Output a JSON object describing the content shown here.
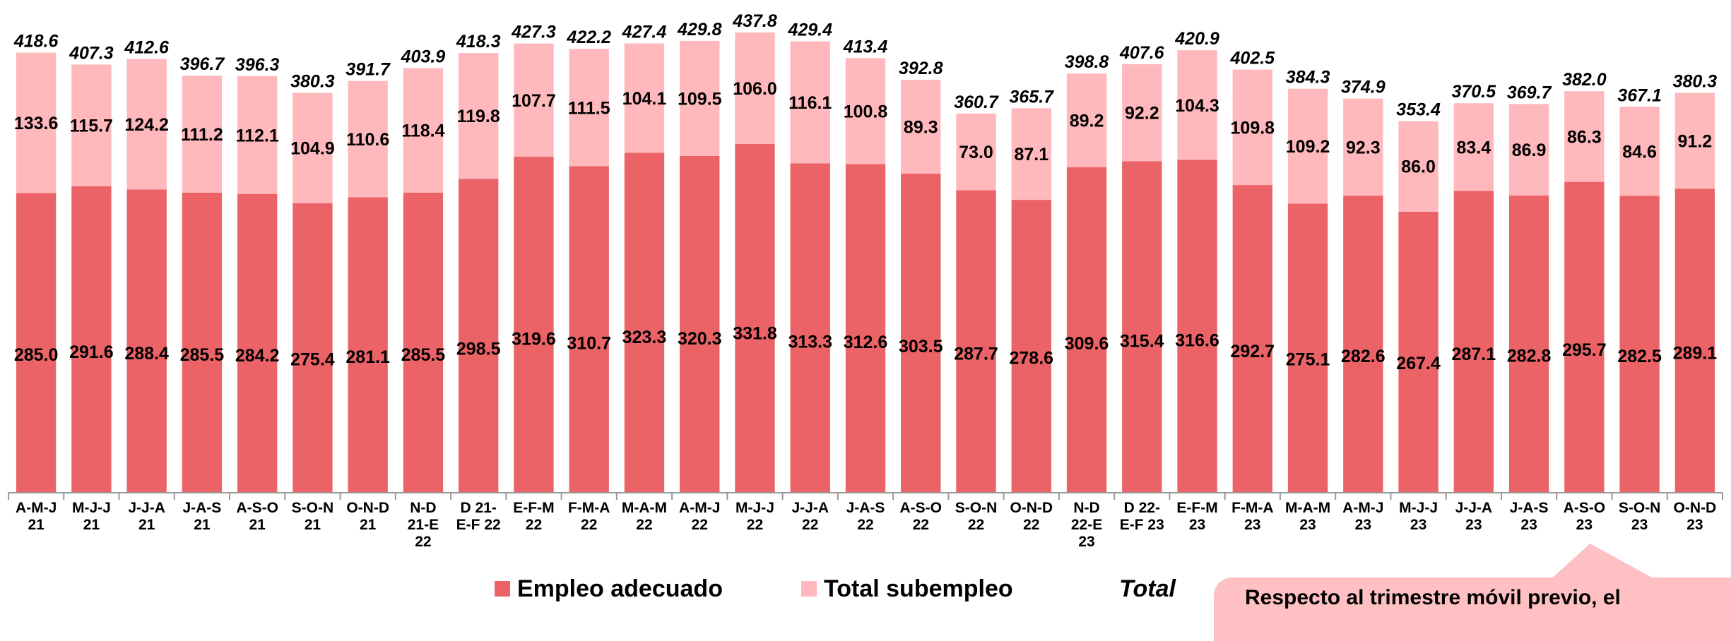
{
  "chart_data": {
    "type": "bar",
    "stacked": true,
    "categories": [
      [
        "A-M-J",
        "21"
      ],
      [
        "M-J-J",
        "21"
      ],
      [
        "J-J-A",
        "21"
      ],
      [
        "J-A-S",
        "21"
      ],
      [
        "A-S-O",
        "21"
      ],
      [
        "S-O-N",
        "21"
      ],
      [
        "O-N-D",
        "21"
      ],
      [
        "N-D",
        "21-E",
        "22"
      ],
      [
        "D 21-",
        "E-F 22"
      ],
      [
        "E-F-M",
        "22"
      ],
      [
        "F-M-A",
        "22"
      ],
      [
        "M-A-M",
        "22"
      ],
      [
        "A-M-J",
        "22"
      ],
      [
        "M-J-J",
        "22"
      ],
      [
        "J-J-A",
        "22"
      ],
      [
        "J-A-S",
        "22"
      ],
      [
        "A-S-O",
        "22"
      ],
      [
        "S-O-N",
        "22"
      ],
      [
        "O-N-D",
        "22"
      ],
      [
        "N-D",
        "22-E",
        "23"
      ],
      [
        "D 22-",
        "E-F 23"
      ],
      [
        "E-F-M",
        "23"
      ],
      [
        "F-M-A",
        "23"
      ],
      [
        "M-A-M",
        "23"
      ],
      [
        "A-M-J",
        "23"
      ],
      [
        "M-J-J",
        "23"
      ],
      [
        "J-J-A",
        "23"
      ],
      [
        "J-A-S",
        "23"
      ],
      [
        "A-S-O",
        "23"
      ],
      [
        "S-O-N",
        "23"
      ],
      [
        "O-N-D",
        "23"
      ]
    ],
    "series": [
      {
        "name": "Empleo adecuado",
        "color": "#eb6366",
        "values": [
          285.0,
          291.6,
          288.4,
          285.5,
          284.2,
          275.4,
          281.1,
          285.5,
          298.5,
          319.6,
          310.7,
          323.3,
          320.3,
          331.8,
          313.3,
          312.6,
          303.5,
          287.7,
          278.6,
          309.6,
          315.4,
          316.6,
          292.7,
          275.1,
          282.6,
          267.4,
          287.1,
          282.8,
          295.7,
          282.5,
          289.1
        ]
      },
      {
        "name": "Total subempleo",
        "color": "#ffb8bc",
        "values": [
          133.6,
          115.7,
          124.2,
          111.2,
          112.1,
          104.9,
          110.6,
          118.4,
          119.8,
          107.7,
          111.5,
          104.1,
          109.5,
          106.0,
          116.1,
          100.8,
          89.3,
          73.0,
          87.1,
          89.2,
          92.2,
          104.3,
          109.8,
          109.2,
          92.3,
          86.0,
          83.4,
          86.9,
          86.3,
          84.6,
          91.2
        ]
      }
    ],
    "totals": {
      "name": "Total",
      "values": [
        418.6,
        407.3,
        412.6,
        396.7,
        396.3,
        380.3,
        391.7,
        403.9,
        418.3,
        427.3,
        422.2,
        427.4,
        429.8,
        437.8,
        429.4,
        413.4,
        392.8,
        360.7,
        365.7,
        398.8,
        407.6,
        420.9,
        402.5,
        384.3,
        374.9,
        353.4,
        370.5,
        369.7,
        382.0,
        367.1,
        380.3
      ]
    },
    "ylim": [
      0,
      437.8
    ],
    "grid": false,
    "legend_position": "bottom"
  },
  "callout": {
    "text": "Respecto al trimestre móvil previo, el"
  }
}
